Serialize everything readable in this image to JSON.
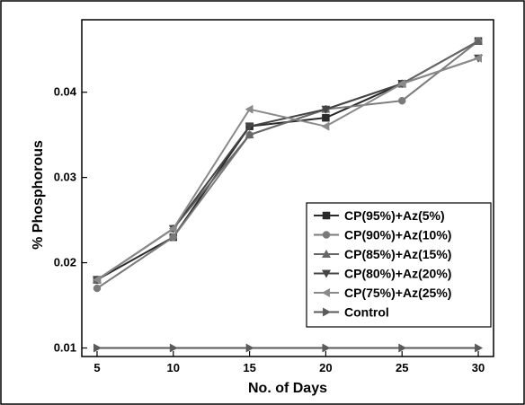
{
  "chart_data": {
    "type": "line",
    "title": "",
    "xlabel": "No. of Days",
    "ylabel": "% Phosphorous",
    "x": [
      5,
      10,
      15,
      20,
      25,
      30
    ],
    "xlim": [
      4,
      31
    ],
    "ylim": [
      0.009,
      0.0485
    ],
    "xticks": [
      5,
      10,
      15,
      20,
      25,
      30
    ],
    "yticks": [
      0.01,
      0.02,
      0.03,
      0.04
    ],
    "xtick_labels": [
      "5",
      "10",
      "15",
      "20",
      "25",
      "30"
    ],
    "ytick_labels": [
      "0.01",
      "0.02",
      "0.03",
      "0.04"
    ],
    "grid": false,
    "legend_position": "lower-right",
    "series": [
      {
        "name": "CP(95%)+Az(5%)",
        "values": [
          0.018,
          0.023,
          0.036,
          0.037,
          0.041,
          0.046
        ],
        "color": "#2a2a2a",
        "marker": "square"
      },
      {
        "name": "CP(90%)+Az(10%)",
        "values": [
          0.017,
          0.023,
          0.035,
          0.038,
          0.039,
          0.046
        ],
        "color": "#7a7a7a",
        "marker": "circle"
      },
      {
        "name": "CP(85%)+Az(15%)",
        "values": [
          0.018,
          0.024,
          0.035,
          0.038,
          0.041,
          0.046
        ],
        "color": "#666666",
        "marker": "triangle-up"
      },
      {
        "name": "CP(80%)+Az(20%)",
        "values": [
          0.018,
          0.024,
          0.036,
          0.038,
          0.041,
          0.044
        ],
        "color": "#444444",
        "marker": "triangle-down"
      },
      {
        "name": "CP(75%)+Az(25%)",
        "values": [
          0.018,
          0.024,
          0.038,
          0.036,
          0.041,
          0.044
        ],
        "color": "#8a8a8a",
        "marker": "triangle-left"
      },
      {
        "name": "Control",
        "values": [
          0.01,
          0.01,
          0.01,
          0.01,
          0.01,
          0.01
        ],
        "color": "#5a5a5a",
        "marker": "triangle-right"
      }
    ]
  }
}
